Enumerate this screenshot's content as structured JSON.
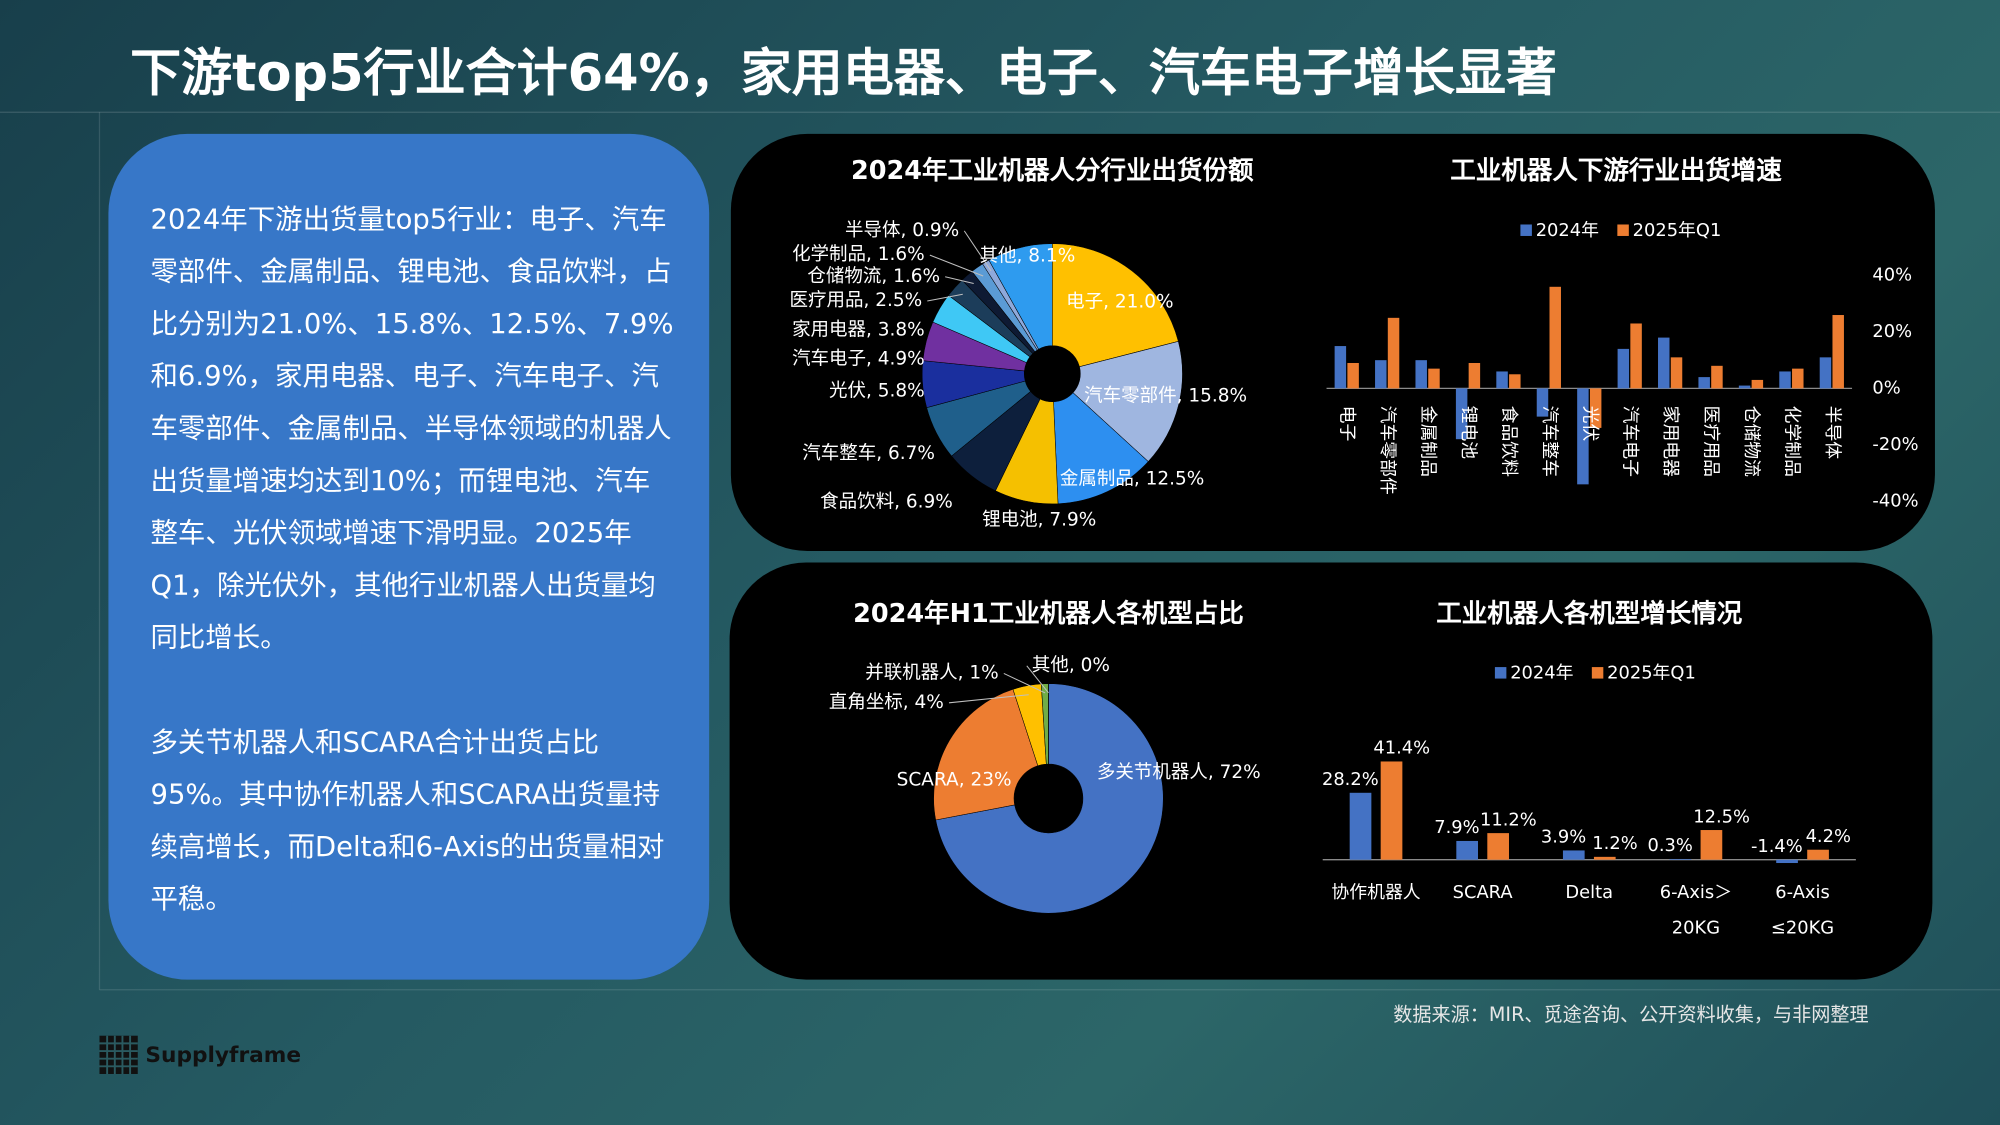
{
  "title": "下游top5行业合计64%，家用电器、电子、汽车电子增长显著",
  "paragraphs": [
    "2024年下游出货量top5行业：电子、汽车零部件、金属制品、锂电池、食品饮料，占比分别为21.0%、15.8%、12.5%、7.9%和6.9%，家用电器、电子、汽车电子、汽车零部件、金属制品、半导体领域的机器人出货量增速均达到10%；而锂电池、汽车整车、光伏领域增速下滑明显。2025年Q1，除光伏外，其他行业机器人出货量均同比增长。",
    "多关节机器人和SCARA合计出货占比95%。其中协作机器人和SCARA出货量持续高增长，而Delta和6-Axis的出货量相对平稳。"
  ],
  "source": "数据来源：MIR、觅途咨询、公开资料收集，与非网整理",
  "logo": "Supplyframe",
  "chart_data": [
    {
      "type": "pie",
      "title": "2024年工业机器人分行业出货份额",
      "values": [
        21.0,
        15.8,
        12.5,
        7.9,
        6.9,
        6.7,
        5.8,
        4.9,
        3.8,
        2.5,
        1.6,
        1.6,
        0.9,
        8.1
      ],
      "value_labels": [
        "电子, 21.0%",
        "汽车零部件, 15.8%",
        "金属制品, 12.5%",
        "锂电池, 7.9%",
        "食品饮料, 6.9%",
        "汽车整车, 6.7%",
        "光伏, 5.8%",
        "汽车电子, 4.9%",
        "家用电器, 3.8%",
        "医疗用品, 2.5%",
        "仓储物流, 1.6%",
        "化学制品, 1.6%",
        "半导体, 0.9%",
        "其他, 8.1%"
      ],
      "colors": [
        "#ffc000",
        "#9fb6e0",
        "#2d8ff0",
        "#f5c000",
        "#0d1f3c",
        "#1f5f8b",
        "#1a2f9e",
        "#7030a0",
        "#3fc8f5",
        "#1c3d5a",
        "#0e1a33",
        "#5b9bd5",
        "#8ea9db",
        "#2e9bef"
      ]
    },
    {
      "type": "bar",
      "title": "工业机器人下游行业出货增速",
      "categories": [
        "电子",
        "汽车零部件",
        "金属制品",
        "锂电池",
        "食品饮料",
        "汽车整车",
        "光伏",
        "汽车电子",
        "家用电器",
        "医疗用品",
        "仓储物流",
        "化学制品",
        "半导体"
      ],
      "series": [
        {
          "name": "2024年",
          "color": "#4472c4",
          "values": [
            15,
            10,
            10,
            -18,
            6,
            -10,
            -34,
            14,
            18,
            4,
            1,
            6,
            11
          ]
        },
        {
          "name": "2025年Q1",
          "color": "#ed7d31",
          "values": [
            9,
            25,
            7,
            9,
            5,
            36,
            -14,
            23,
            11,
            8,
            3,
            7,
            26
          ]
        }
      ],
      "ylim": [
        -40,
        40
      ],
      "yticks": [
        {
          "value": 40,
          "label": "40%"
        },
        {
          "value": 20,
          "label": "20%"
        },
        {
          "value": 0,
          "label": "0%"
        },
        {
          "value": -20,
          "label": "-20%"
        },
        {
          "value": -40,
          "label": "-40%"
        }
      ]
    },
    {
      "type": "pie",
      "title": "2024年H1工业机器人各机型占比",
      "values": [
        72,
        23,
        4,
        1,
        0
      ],
      "value_labels": [
        "多关节机器人, 72%",
        "SCARA, 23%",
        "直角坐标, 4%",
        "并联机器人, 1%",
        "其他, 0%"
      ],
      "colors": [
        "#4472c4",
        "#ed7d31",
        "#ffc000",
        "#70ad47",
        "#264478"
      ]
    },
    {
      "type": "bar",
      "title": "工业机器人各机型增长情况",
      "categories": [
        "协作机器人",
        "SCARA",
        "Delta",
        "6-Axis＞\n20KG",
        "6-Axis\n≤20KG"
      ],
      "series": [
        {
          "name": "2024年",
          "color": "#4472c4",
          "values": [
            28.2,
            7.9,
            3.9,
            0.3,
            -1.4
          ],
          "value_labels": [
            "28.2%",
            "7.9%",
            "3.9%",
            "0.3%",
            "-1.4%"
          ]
        },
        {
          "name": "2025年Q1",
          "color": "#ed7d31",
          "values": [
            41.4,
            11.2,
            1.2,
            12.5,
            4.2
          ],
          "value_labels": [
            "41.4%",
            "11.2%",
            "1.2%",
            "12.5%",
            "4.2%"
          ]
        }
      ]
    }
  ]
}
